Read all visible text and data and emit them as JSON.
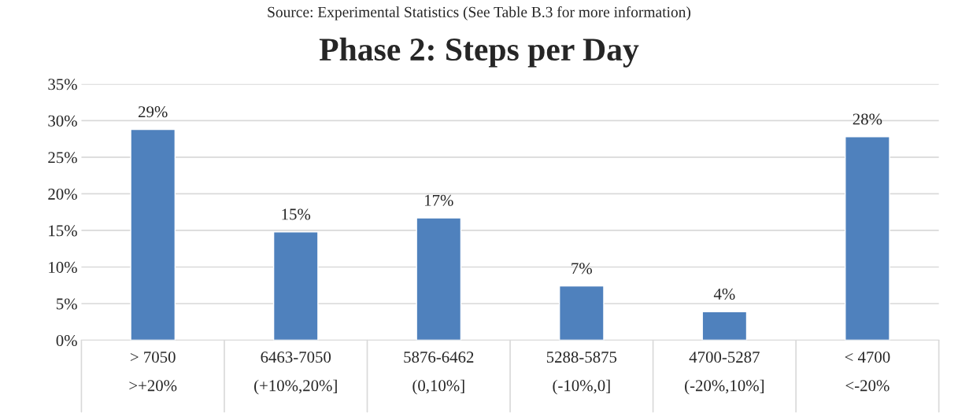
{
  "chart_data": {
    "type": "bar",
    "title": "Phase 2: Steps per Day",
    "annotations": [
      "Source: Experimental Statistics (See Table B.3 for more information)"
    ],
    "categories": [
      "> 7050\n>+20%",
      "6463-7050\n(+10%,20%]",
      "5876-6462\n(0,10%]",
      "5288-5875\n(-10%,0]",
      "4700-5287\n(-20%,10%]",
      "< 4700\n<-20%"
    ],
    "values": [
      28.8,
      14.8,
      16.7,
      7.4,
      3.9,
      27.8
    ],
    "value_labels": [
      "29%",
      "15%",
      "17%",
      "7%",
      "4%",
      "28%"
    ],
    "color": "#4f81bd",
    "ylim": [
      0,
      35
    ],
    "yticks": [
      {
        "value": 0,
        "label": "0%"
      },
      {
        "value": 5,
        "label": "5%"
      },
      {
        "value": 10,
        "label": "10%"
      },
      {
        "value": 15,
        "label": "15%"
      },
      {
        "value": 20,
        "label": "20%"
      },
      {
        "value": 25,
        "label": "25%"
      },
      {
        "value": 30,
        "label": "30%"
      },
      {
        "value": 35,
        "label": "35%"
      }
    ],
    "grid": "y"
  }
}
